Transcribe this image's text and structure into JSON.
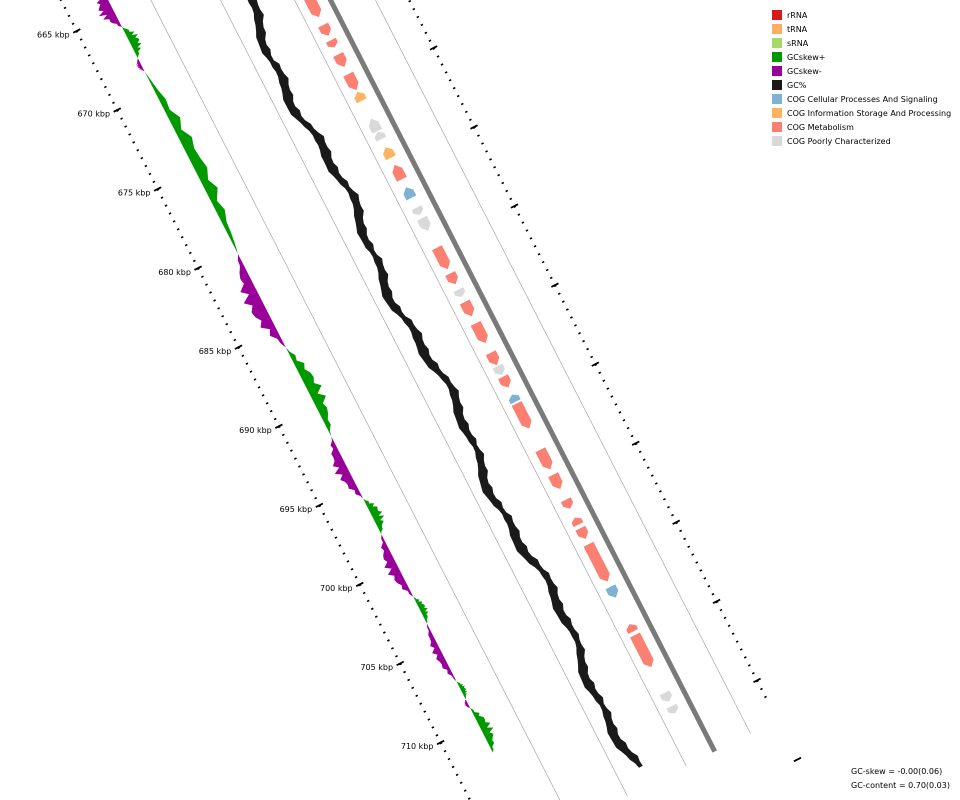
{
  "ruler": {
    "labels": [
      "665 kbp",
      "670 kbp",
      "675 kbp",
      "680 kbp",
      "685 kbp",
      "690 kbp",
      "695 kbp",
      "700 kbp",
      "705 kbp",
      "710 kbp"
    ]
  },
  "legend": {
    "items": [
      {
        "label": "rRNA",
        "color": "#d7191c"
      },
      {
        "label": "tRNA",
        "color": "#fdae61"
      },
      {
        "label": "sRNA",
        "color": "#a6d96a"
      },
      {
        "label": "GCskew+",
        "color": "#009900"
      },
      {
        "label": "GCskew-",
        "color": "#990099"
      },
      {
        "label": "GC%",
        "color": "#1a1a1a"
      },
      {
        "label": "COG Cellular Processes And Signaling",
        "color": "#7fb1d3"
      },
      {
        "label": "COG Information Storage And Processing",
        "color": "#fdb462"
      },
      {
        "label": "COG Metabolism",
        "color": "#fb8072"
      },
      {
        "label": "COG Poorly Characterized",
        "color": "#d9d9d9"
      }
    ]
  },
  "stats": {
    "gc_skew": "GC-skew = -0.00(0.06)",
    "gc_content": "GC-content = 0.70(0.03)"
  }
}
